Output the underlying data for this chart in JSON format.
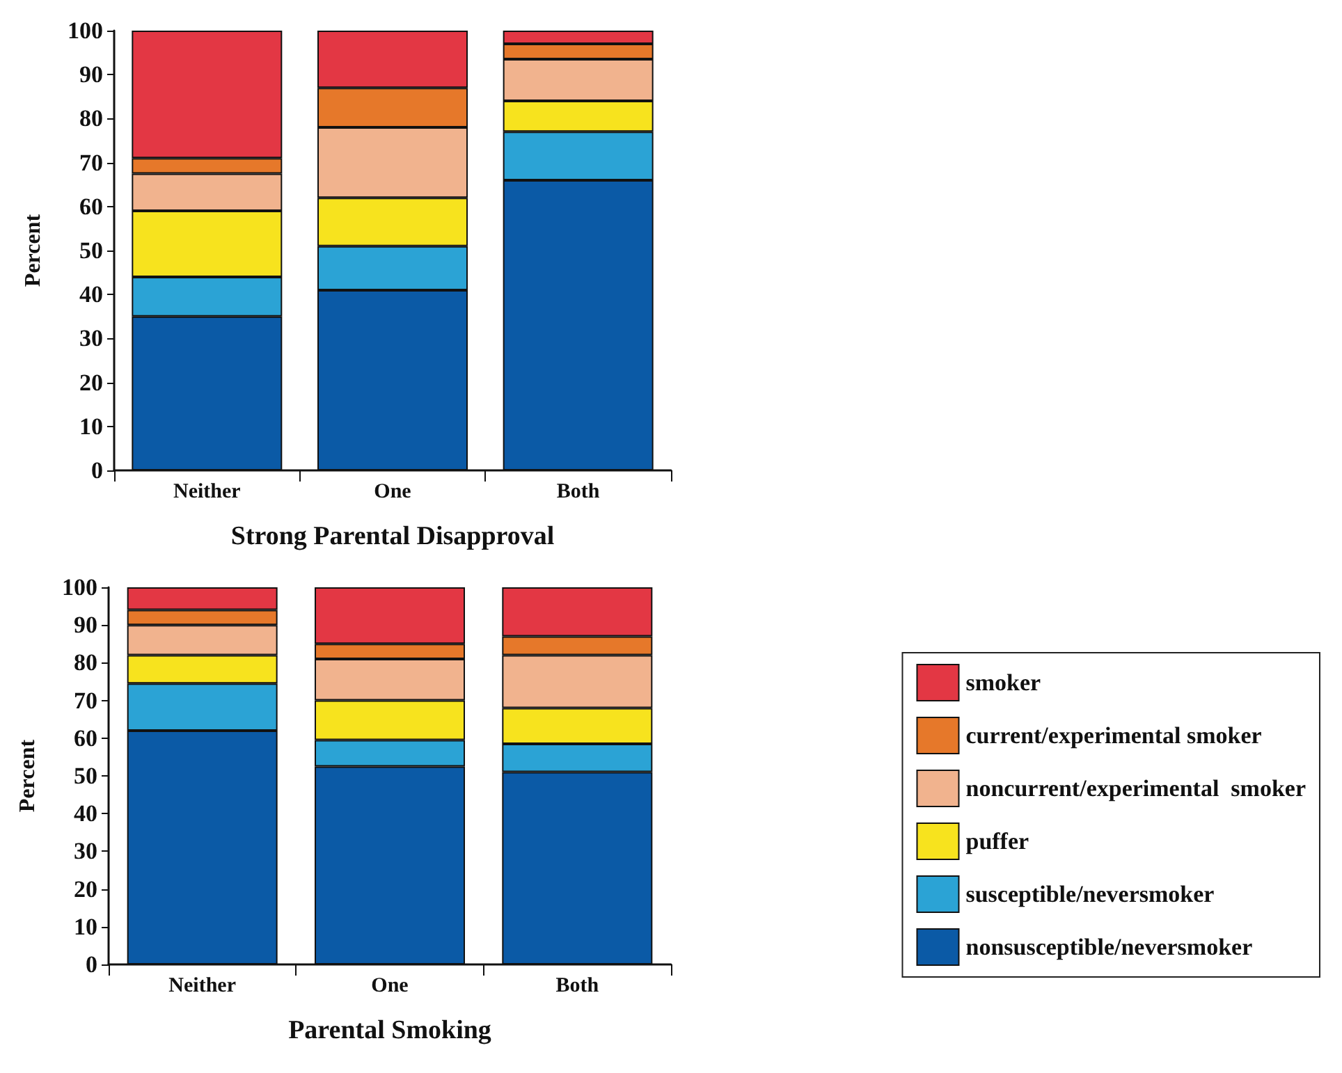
{
  "chart_data": [
    {
      "type": "bar",
      "stacked": true,
      "xlabel": "Strong Parental Disapproval",
      "ylabel": "Percent",
      "categories": [
        "Neither",
        "One",
        "Both"
      ],
      "ylim": [
        0,
        100
      ],
      "yticks": [
        0,
        10,
        20,
        30,
        40,
        50,
        60,
        70,
        80,
        90,
        100
      ],
      "grid": false,
      "legend": false,
      "series": [
        {
          "color": "#0b5aa6",
          "values": [
            35,
            41,
            66
          ]
        },
        {
          "color": "#2ba3d5",
          "values": [
            9,
            10,
            11
          ]
        },
        {
          "color": "#f7e31e",
          "values": [
            15,
            11,
            7
          ]
        },
        {
          "color": "#f1b38e",
          "values": [
            8.5,
            16,
            9.5
          ]
        },
        {
          "color": "#e6782a",
          "values": [
            3.5,
            9,
            3.5
          ]
        },
        {
          "color": "#e33744",
          "values": [
            29,
            13,
            3
          ]
        }
      ]
    },
    {
      "type": "bar",
      "stacked": true,
      "xlabel": "Parental Smoking",
      "ylabel": "Percent",
      "categories": [
        "Neither",
        "One",
        "Both"
      ],
      "ylim": [
        0,
        100
      ],
      "yticks": [
        0,
        10,
        20,
        30,
        40,
        50,
        60,
        70,
        80,
        90,
        100
      ],
      "grid": false,
      "legend": "right",
      "series": [
        {
          "name": "nonsusceptible/neversmoker",
          "color": "#0b5aa6",
          "values": [
            62,
            52.5,
            51
          ]
        },
        {
          "name": "susceptible/neversmoker",
          "color": "#2ba3d5",
          "values": [
            12.5,
            7,
            7.5
          ]
        },
        {
          "name": "puffer",
          "color": "#f7e31e",
          "values": [
            7.5,
            10.5,
            9.5
          ]
        },
        {
          "name": "noncurrent/experimental  smoker",
          "color": "#f1b38e",
          "values": [
            8,
            11,
            14
          ]
        },
        {
          "name": "current/experimental smoker",
          "color": "#e6782a",
          "values": [
            4,
            4,
            5
          ]
        },
        {
          "name": "smoker",
          "color": "#e33744",
          "values": [
            6,
            15,
            13
          ]
        }
      ]
    }
  ]
}
